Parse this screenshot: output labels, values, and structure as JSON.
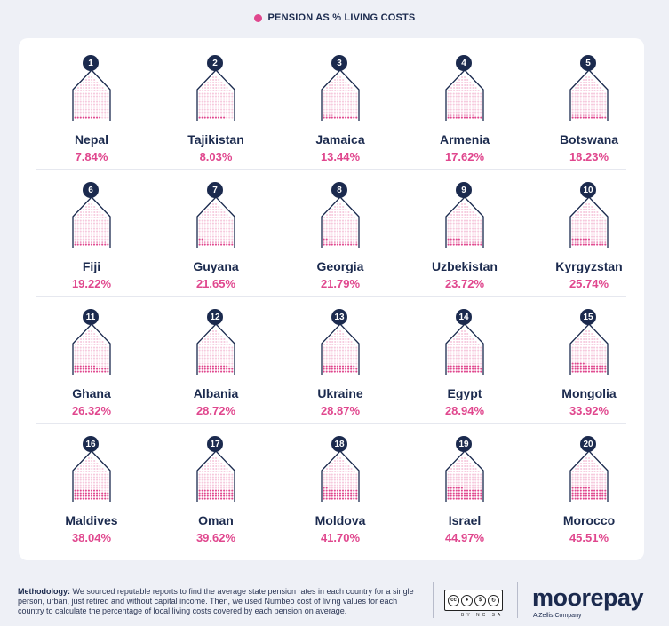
{
  "legend": {
    "label": "PENSION AS % LIVING COSTS",
    "color": "#e0478e"
  },
  "chart_data": {
    "type": "pictogram",
    "title": "PENSION AS % LIVING COSTS",
    "unit": "%",
    "ranks": [
      "1",
      "2",
      "3",
      "4",
      "5",
      "6",
      "7",
      "8",
      "9",
      "10",
      "11",
      "12",
      "13",
      "14",
      "15",
      "16",
      "17",
      "18",
      "19",
      "20"
    ],
    "categories": [
      "Nepal",
      "Tajikistan",
      "Jamaica",
      "Armenia",
      "Botswana",
      "Fiji",
      "Guyana",
      "Georgia",
      "Uzbekistan",
      "Kyrgyzstan",
      "Ghana",
      "Albania",
      "Ukraine",
      "Egypt",
      "Mongolia",
      "Maldives",
      "Oman",
      "Moldova",
      "Israel",
      "Morocco"
    ],
    "values": [
      7.84,
      8.03,
      13.44,
      17.62,
      18.23,
      19.22,
      21.65,
      21.79,
      23.72,
      25.74,
      26.32,
      28.72,
      28.87,
      28.94,
      33.92,
      38.04,
      39.62,
      41.7,
      44.97,
      45.51
    ],
    "labels": [
      "7.84%",
      "8.03%",
      "13.44%",
      "17.62%",
      "18.23%",
      "19.22%",
      "21.65%",
      "21.79%",
      "23.72%",
      "25.74%",
      "26.32%",
      "28.72%",
      "28.87%",
      "28.94%",
      "33.92%",
      "38.04%",
      "39.62%",
      "41.70%",
      "44.97%",
      "45.51%"
    ],
    "colors": {
      "filled": "#e0478e",
      "empty": "#f6c9dd",
      "outline": "#1b2a4e",
      "badge": "#1b2a4e"
    }
  },
  "footer": {
    "methodology_label": "Methodology:",
    "methodology_text": "We sourced reputable reports to find the average state pension rates in each country for a single person, urban, just retired and without capital income. Then, we used Numbeo cost of living values for each country to calculate the percentage of local living costs covered by each pension on average.",
    "license_badge": "cc",
    "license_terms": "BY NC SA",
    "brand": "moorepay",
    "brand_sub": "A Zellis Company"
  }
}
